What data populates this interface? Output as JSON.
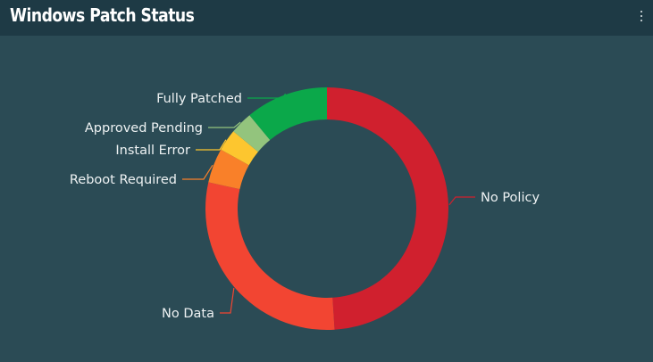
{
  "widget": {
    "title": "Windows Patch Status",
    "menu_icon": "more-vertical-icon"
  },
  "chart_data": {
    "type": "pie",
    "title": "Windows Patch Status",
    "donut": true,
    "slices": [
      {
        "label": "No Policy",
        "value": 49.0,
        "color": "#d0202e"
      },
      {
        "label": "No Data",
        "value": 29.5,
        "color": "#f24532"
      },
      {
        "label": "Reboot Required",
        "value": 4.6,
        "color": "#f98029"
      },
      {
        "label": "Install Error",
        "value": 2.9,
        "color": "#fdc62f"
      },
      {
        "label": "Approved Pending",
        "value": 3.0,
        "color": "#93c47d"
      },
      {
        "label": "Fully Patched",
        "value": 11.0,
        "color": "#0ba84a"
      }
    ]
  }
}
